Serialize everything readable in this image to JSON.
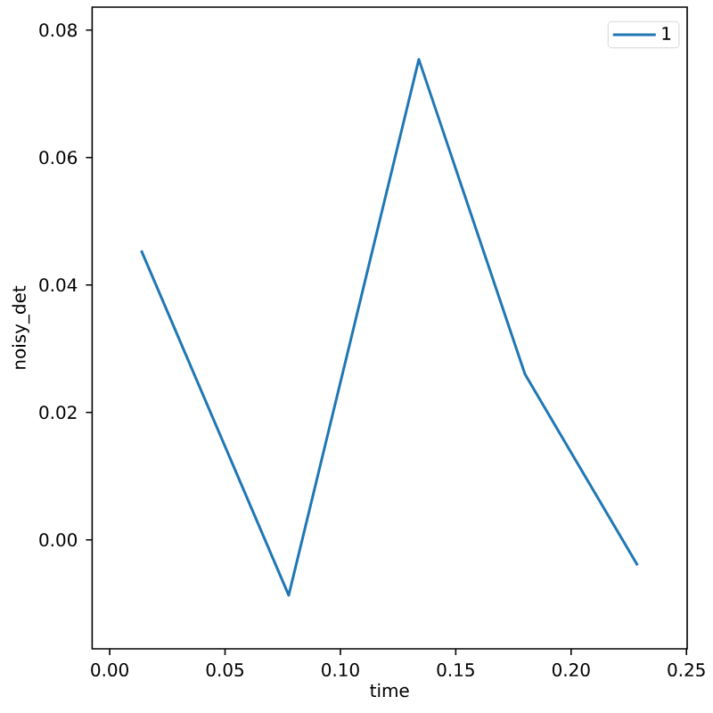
{
  "chart_data": {
    "type": "line",
    "xlabel": "time",
    "ylabel": "noisy_det",
    "x": [
      0.0137,
      0.0776,
      0.134,
      0.18,
      0.2288
    ],
    "series": [
      {
        "name": "1",
        "color": "#1f77b4",
        "values": [
          0.0454,
          -0.0087,
          0.0754,
          0.026,
          -0.004
        ]
      }
    ],
    "xlim": [
      -0.0076,
      0.2503
    ],
    "ylim": [
      -0.0171,
      0.0836
    ],
    "xticks": [
      {
        "value": 0,
        "label": "0.00"
      },
      {
        "value": 0.05,
        "label": "0.05"
      },
      {
        "value": 0.1,
        "label": "0.10"
      },
      {
        "value": 0.15,
        "label": "0.15"
      },
      {
        "value": 0.2,
        "label": "0.20"
      },
      {
        "value": 0.25,
        "label": "0.25"
      }
    ],
    "yticks": [
      {
        "value": 0,
        "label": "0.00"
      },
      {
        "value": 0.02,
        "label": "0.02"
      },
      {
        "value": 0.04,
        "label": "0.04"
      },
      {
        "value": 0.06,
        "label": "0.06"
      },
      {
        "value": 0.08,
        "label": "0.08"
      }
    ],
    "legend": "top right"
  }
}
